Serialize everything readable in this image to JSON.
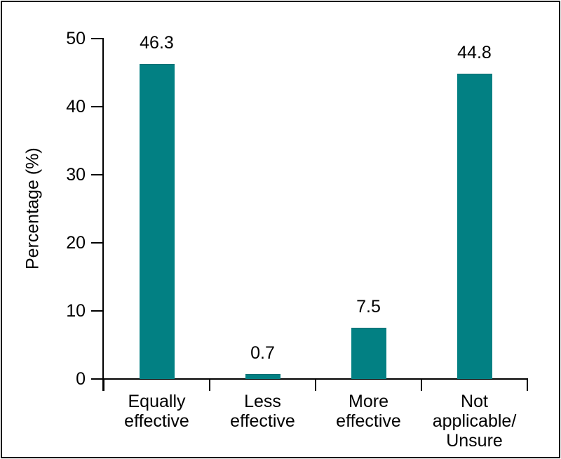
{
  "figure": {
    "background_color": "#ffffff",
    "frame_color": "#000000"
  },
  "chart_data": {
    "type": "bar",
    "title": "",
    "xlabel": "",
    "ylabel": "Percentage (%)",
    "categories": [
      "Equally\neffective",
      "Less\neffective",
      "More\neffective",
      "Not\napplicable/\nUnsure"
    ],
    "values": [
      46.3,
      0.7,
      7.5,
      44.8
    ],
    "value_labels": [
      "46.3",
      "0.7",
      "7.5",
      "44.8"
    ],
    "yticks": [
      0,
      10,
      20,
      30,
      40,
      50
    ],
    "ytick_labels": [
      "0",
      "10",
      "20",
      "30",
      "40",
      "50"
    ],
    "ylim": [
      0,
      50
    ],
    "bar_color": "#028083",
    "bar_edge_color": "#0b6d71",
    "axis_color": "#000000",
    "grid": false,
    "legend": "none"
  }
}
